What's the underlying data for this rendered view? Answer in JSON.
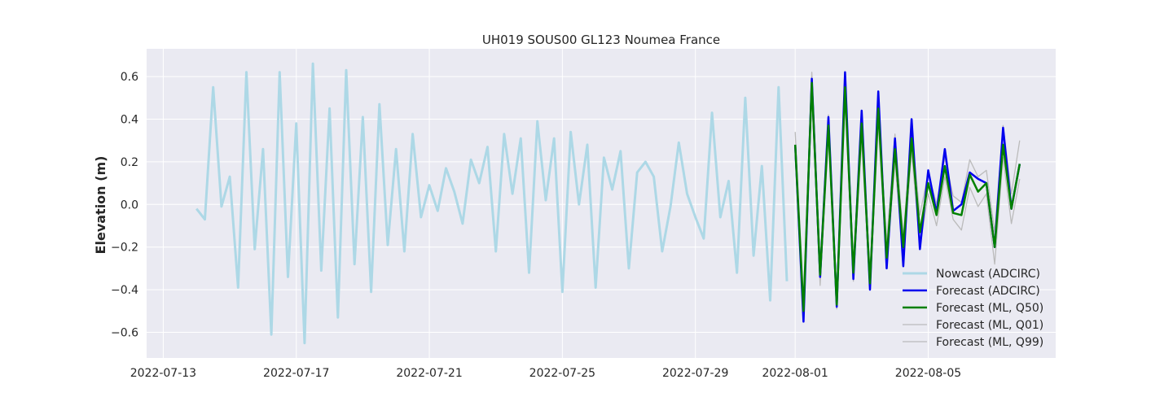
{
  "chart_data": {
    "type": "line",
    "title": "UH019 SOUS00 GL123 Noumea France",
    "xlabel": "",
    "ylabel": "Elevation (m)",
    "x_type": "date",
    "xlim": [
      "2022-07-12T12:00",
      "2022-08-08T20:00"
    ],
    "ylim": [
      -0.72,
      0.73
    ],
    "xticks": [
      "2022-07-13",
      "2022-07-17",
      "2022-07-21",
      "2022-07-25",
      "2022-07-29",
      "2022-08-01",
      "2022-08-05"
    ],
    "yticks": [
      -0.6,
      -0.4,
      -0.2,
      0.0,
      0.2,
      0.4,
      0.6
    ],
    "ytick_labels": [
      "−0.6",
      "−0.4",
      "−0.2",
      "0.0",
      "0.2",
      "0.4",
      "0.6"
    ],
    "grid": true,
    "legend_position": "bottom-right",
    "colors": {
      "background": "#eaeaf2",
      "grid": "#ffffff",
      "nowcast": "#add8e6",
      "forecast_adcirc": "#0000ee",
      "forecast_ml_q50": "#008000",
      "forecast_ml_quantiles": "#bbbbbb"
    },
    "series": [
      {
        "name": "Nowcast (ADCIRC)",
        "color": "#add8e6",
        "x": [
          "2022-07-14T00:00",
          "2022-07-14T06:00",
          "2022-07-14T12:00",
          "2022-07-14T18:00",
          "2022-07-15T00:00",
          "2022-07-15T06:00",
          "2022-07-15T12:00",
          "2022-07-15T18:00",
          "2022-07-16T00:00",
          "2022-07-16T06:00",
          "2022-07-16T12:00",
          "2022-07-16T18:00",
          "2022-07-17T00:00",
          "2022-07-17T06:00",
          "2022-07-17T12:00",
          "2022-07-17T18:00",
          "2022-07-18T00:00",
          "2022-07-18T06:00",
          "2022-07-18T12:00",
          "2022-07-18T18:00",
          "2022-07-19T00:00",
          "2022-07-19T06:00",
          "2022-07-19T12:00",
          "2022-07-19T18:00",
          "2022-07-20T00:00",
          "2022-07-20T06:00",
          "2022-07-20T12:00",
          "2022-07-20T18:00",
          "2022-07-21T00:00",
          "2022-07-21T06:00",
          "2022-07-21T12:00",
          "2022-07-21T18:00",
          "2022-07-22T00:00",
          "2022-07-22T06:00",
          "2022-07-22T12:00",
          "2022-07-22T18:00",
          "2022-07-23T00:00",
          "2022-07-23T06:00",
          "2022-07-23T12:00",
          "2022-07-23T18:00",
          "2022-07-24T00:00",
          "2022-07-24T06:00",
          "2022-07-24T12:00",
          "2022-07-24T18:00",
          "2022-07-25T00:00",
          "2022-07-25T06:00",
          "2022-07-25T12:00",
          "2022-07-25T18:00",
          "2022-07-26T00:00",
          "2022-07-26T06:00",
          "2022-07-26T12:00",
          "2022-07-26T18:00",
          "2022-07-27T00:00",
          "2022-07-27T06:00",
          "2022-07-27T12:00",
          "2022-07-27T18:00",
          "2022-07-28T00:00",
          "2022-07-28T06:00",
          "2022-07-28T12:00",
          "2022-07-28T18:00",
          "2022-07-29T00:00",
          "2022-07-29T06:00",
          "2022-07-29T12:00",
          "2022-07-29T18:00",
          "2022-07-30T00:00",
          "2022-07-30T06:00",
          "2022-07-30T12:00",
          "2022-07-30T18:00",
          "2022-07-31T00:00",
          "2022-07-31T06:00",
          "2022-07-31T12:00",
          "2022-07-31T18:00"
        ],
        "values": [
          -0.02,
          -0.07,
          0.55,
          -0.01,
          0.13,
          -0.39,
          0.62,
          -0.21,
          0.26,
          -0.61,
          0.62,
          -0.34,
          0.38,
          -0.65,
          0.66,
          -0.31,
          0.45,
          -0.53,
          0.63,
          -0.28,
          0.41,
          -0.41,
          0.47,
          -0.19,
          0.26,
          -0.22,
          0.33,
          -0.06,
          0.09,
          -0.03,
          0.17,
          0.06,
          -0.09,
          0.21,
          0.1,
          0.27,
          -0.22,
          0.33,
          0.05,
          0.31,
          -0.32,
          0.39,
          0.02,
          0.31,
          -0.41,
          0.34,
          0.0,
          0.28,
          -0.39,
          0.22,
          0.07,
          0.25,
          -0.3,
          0.15,
          0.2,
          0.13,
          -0.22,
          -0.01,
          0.29,
          0.05,
          -0.06,
          -0.16,
          0.43,
          -0.06,
          0.11,
          -0.32,
          0.5,
          -0.24,
          0.18,
          -0.45,
          0.55,
          -0.36
        ]
      },
      {
        "name": "Forecast (ADCIRC)",
        "color": "#0000ee",
        "x": [
          "2022-08-01T00:00",
          "2022-08-01T06:00",
          "2022-08-01T12:00",
          "2022-08-01T18:00",
          "2022-08-02T00:00",
          "2022-08-02T06:00",
          "2022-08-02T12:00",
          "2022-08-02T18:00",
          "2022-08-03T00:00",
          "2022-08-03T06:00",
          "2022-08-03T12:00",
          "2022-08-03T18:00",
          "2022-08-04T00:00",
          "2022-08-04T06:00",
          "2022-08-04T12:00",
          "2022-08-04T18:00",
          "2022-08-05T00:00",
          "2022-08-05T06:00",
          "2022-08-05T12:00",
          "2022-08-05T18:00",
          "2022-08-06T00:00",
          "2022-08-06T06:00",
          "2022-08-06T12:00",
          "2022-08-06T18:00",
          "2022-08-07T00:00",
          "2022-08-07T06:00",
          "2022-08-07T12:00",
          "2022-08-07T18:00"
        ],
        "values": [
          0.28,
          -0.55,
          0.59,
          -0.34,
          0.41,
          -0.48,
          0.62,
          -0.35,
          0.44,
          -0.4,
          0.53,
          -0.3,
          0.31,
          -0.29,
          0.4,
          -0.21,
          0.16,
          -0.04,
          0.26,
          -0.03,
          0.0,
          0.15,
          0.12,
          0.1,
          -0.2,
          0.36,
          -0.02,
          0.19
        ]
      },
      {
        "name": "Forecast (ML, Q50)",
        "color": "#008000",
        "x": [
          "2022-08-01T00:00",
          "2022-08-01T06:00",
          "2022-08-01T12:00",
          "2022-08-01T18:00",
          "2022-08-02T00:00",
          "2022-08-02T06:00",
          "2022-08-02T12:00",
          "2022-08-02T18:00",
          "2022-08-03T00:00",
          "2022-08-03T06:00",
          "2022-08-03T12:00",
          "2022-08-03T18:00",
          "2022-08-04T00:00",
          "2022-08-04T06:00",
          "2022-08-04T12:00",
          "2022-08-04T18:00",
          "2022-08-05T00:00",
          "2022-08-05T06:00",
          "2022-08-05T12:00",
          "2022-08-05T18:00",
          "2022-08-06T00:00",
          "2022-08-06T06:00",
          "2022-08-06T12:00",
          "2022-08-06T18:00",
          "2022-08-07T00:00",
          "2022-08-07T06:00",
          "2022-08-07T12:00",
          "2022-08-07T18:00"
        ],
        "values": [
          0.28,
          -0.5,
          0.57,
          -0.33,
          0.37,
          -0.47,
          0.55,
          -0.32,
          0.38,
          -0.37,
          0.45,
          -0.25,
          0.26,
          -0.2,
          0.31,
          -0.13,
          0.1,
          -0.05,
          0.18,
          -0.04,
          -0.05,
          0.14,
          0.06,
          0.1,
          -0.2,
          0.28,
          -0.02,
          0.19
        ]
      },
      {
        "name": "Forecast (ML, Q01)",
        "color": "#bbbbbb",
        "x": [
          "2022-08-01T00:00",
          "2022-08-01T06:00",
          "2022-08-01T12:00",
          "2022-08-01T18:00",
          "2022-08-02T00:00",
          "2022-08-02T06:00",
          "2022-08-02T12:00",
          "2022-08-02T18:00",
          "2022-08-03T00:00",
          "2022-08-03T06:00",
          "2022-08-03T12:00",
          "2022-08-03T18:00",
          "2022-08-04T00:00",
          "2022-08-04T06:00",
          "2022-08-04T12:00",
          "2022-08-04T18:00",
          "2022-08-05T00:00",
          "2022-08-05T06:00",
          "2022-08-05T12:00",
          "2022-08-05T18:00",
          "2022-08-06T00:00",
          "2022-08-06T06:00",
          "2022-08-06T12:00",
          "2022-08-06T18:00",
          "2022-08-07T00:00",
          "2022-08-07T06:00",
          "2022-08-07T12:00",
          "2022-08-07T18:00"
        ],
        "values": [
          0.22,
          -0.53,
          0.52,
          -0.38,
          0.32,
          -0.49,
          0.5,
          -0.36,
          0.3,
          -0.39,
          0.38,
          -0.3,
          0.2,
          -0.27,
          0.25,
          -0.2,
          0.05,
          -0.1,
          0.13,
          -0.07,
          -0.12,
          0.08,
          -0.01,
          0.05,
          -0.28,
          0.22,
          -0.09,
          0.12
        ]
      },
      {
        "name": "Forecast (ML, Q99)",
        "color": "#bbbbbb",
        "x": [
          "2022-08-01T00:00",
          "2022-08-01T06:00",
          "2022-08-01T12:00",
          "2022-08-01T18:00",
          "2022-08-02T00:00",
          "2022-08-02T06:00",
          "2022-08-02T12:00",
          "2022-08-02T18:00",
          "2022-08-03T00:00",
          "2022-08-03T06:00",
          "2022-08-03T12:00",
          "2022-08-03T18:00",
          "2022-08-04T00:00",
          "2022-08-04T06:00",
          "2022-08-04T12:00",
          "2022-08-04T18:00",
          "2022-08-05T00:00",
          "2022-08-05T06:00",
          "2022-08-05T12:00",
          "2022-08-05T18:00",
          "2022-08-06T00:00",
          "2022-08-06T06:00",
          "2022-08-06T12:00",
          "2022-08-06T18:00",
          "2022-08-07T00:00",
          "2022-08-07T06:00",
          "2022-08-07T12:00",
          "2022-08-07T18:00"
        ],
        "values": [
          0.34,
          -0.44,
          0.62,
          -0.27,
          0.42,
          -0.43,
          0.58,
          -0.27,
          0.42,
          -0.33,
          0.47,
          -0.18,
          0.33,
          -0.15,
          0.35,
          -0.05,
          0.15,
          0.0,
          0.22,
          0.04,
          0.01,
          0.21,
          0.13,
          0.16,
          -0.13,
          0.37,
          0.05,
          0.3
        ]
      }
    ]
  }
}
